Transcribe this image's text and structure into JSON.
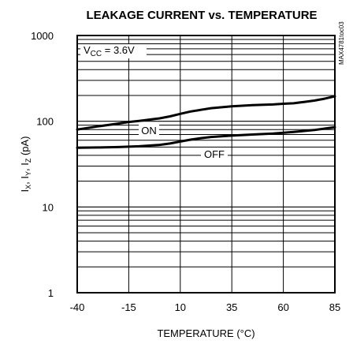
{
  "chart_data": {
    "type": "line",
    "title": "LEAKAGE CURRENT vs. TEMPERATURE",
    "xlabel": "TEMPERATURE (°C)",
    "ylabel": "IX, IY, IZ (pA)",
    "ylabel_parts": {
      "I1": "I",
      "s1": "X",
      "sep1": ", I",
      "s2": "Y",
      "sep2": ", I",
      "s3": "Z",
      "unit": " (pA)"
    },
    "xlim": [
      -40,
      85
    ],
    "ylim": [
      1,
      1000
    ],
    "yscale": "log",
    "xticks": [
      -40,
      -15,
      10,
      35,
      60,
      85
    ],
    "xtick_labels": [
      "-40",
      "-15",
      "10",
      "35",
      "60",
      "85"
    ],
    "yticks": [
      1,
      10,
      100,
      1000
    ],
    "ytick_labels": [
      "1",
      "10",
      "100",
      "1000"
    ],
    "grid": true,
    "series": [
      {
        "name": "ON",
        "x": [
          -40,
          -30,
          -20,
          -15,
          -10,
          0,
          5,
          10,
          15,
          20,
          25,
          35,
          45,
          55,
          60,
          65,
          70,
          75,
          80,
          85
        ],
        "y": [
          80,
          87,
          94,
          98,
          101,
          108,
          114,
          122,
          130,
          136,
          142,
          149,
          154,
          157,
          160,
          162,
          168,
          174,
          183,
          195
        ]
      },
      {
        "name": "OFF",
        "x": [
          -40,
          -30,
          -20,
          -15,
          -10,
          -5,
          0,
          5,
          10,
          15,
          20,
          25,
          35,
          45,
          55,
          60,
          65,
          70,
          75,
          80,
          85
        ],
        "y": [
          49,
          49.5,
          50,
          50.5,
          51,
          52,
          53,
          55,
          58,
          61,
          63.5,
          65.5,
          68,
          70,
          72,
          73.5,
          75,
          77,
          79,
          82,
          85
        ]
      }
    ],
    "annotations": {
      "vcc_prefix": "V",
      "vcc_sub": "CC",
      "vcc_value": " = 3.6V",
      "on_label": "ON",
      "off_label": "OFF",
      "figure_code": "MAX4781toc03"
    }
  }
}
